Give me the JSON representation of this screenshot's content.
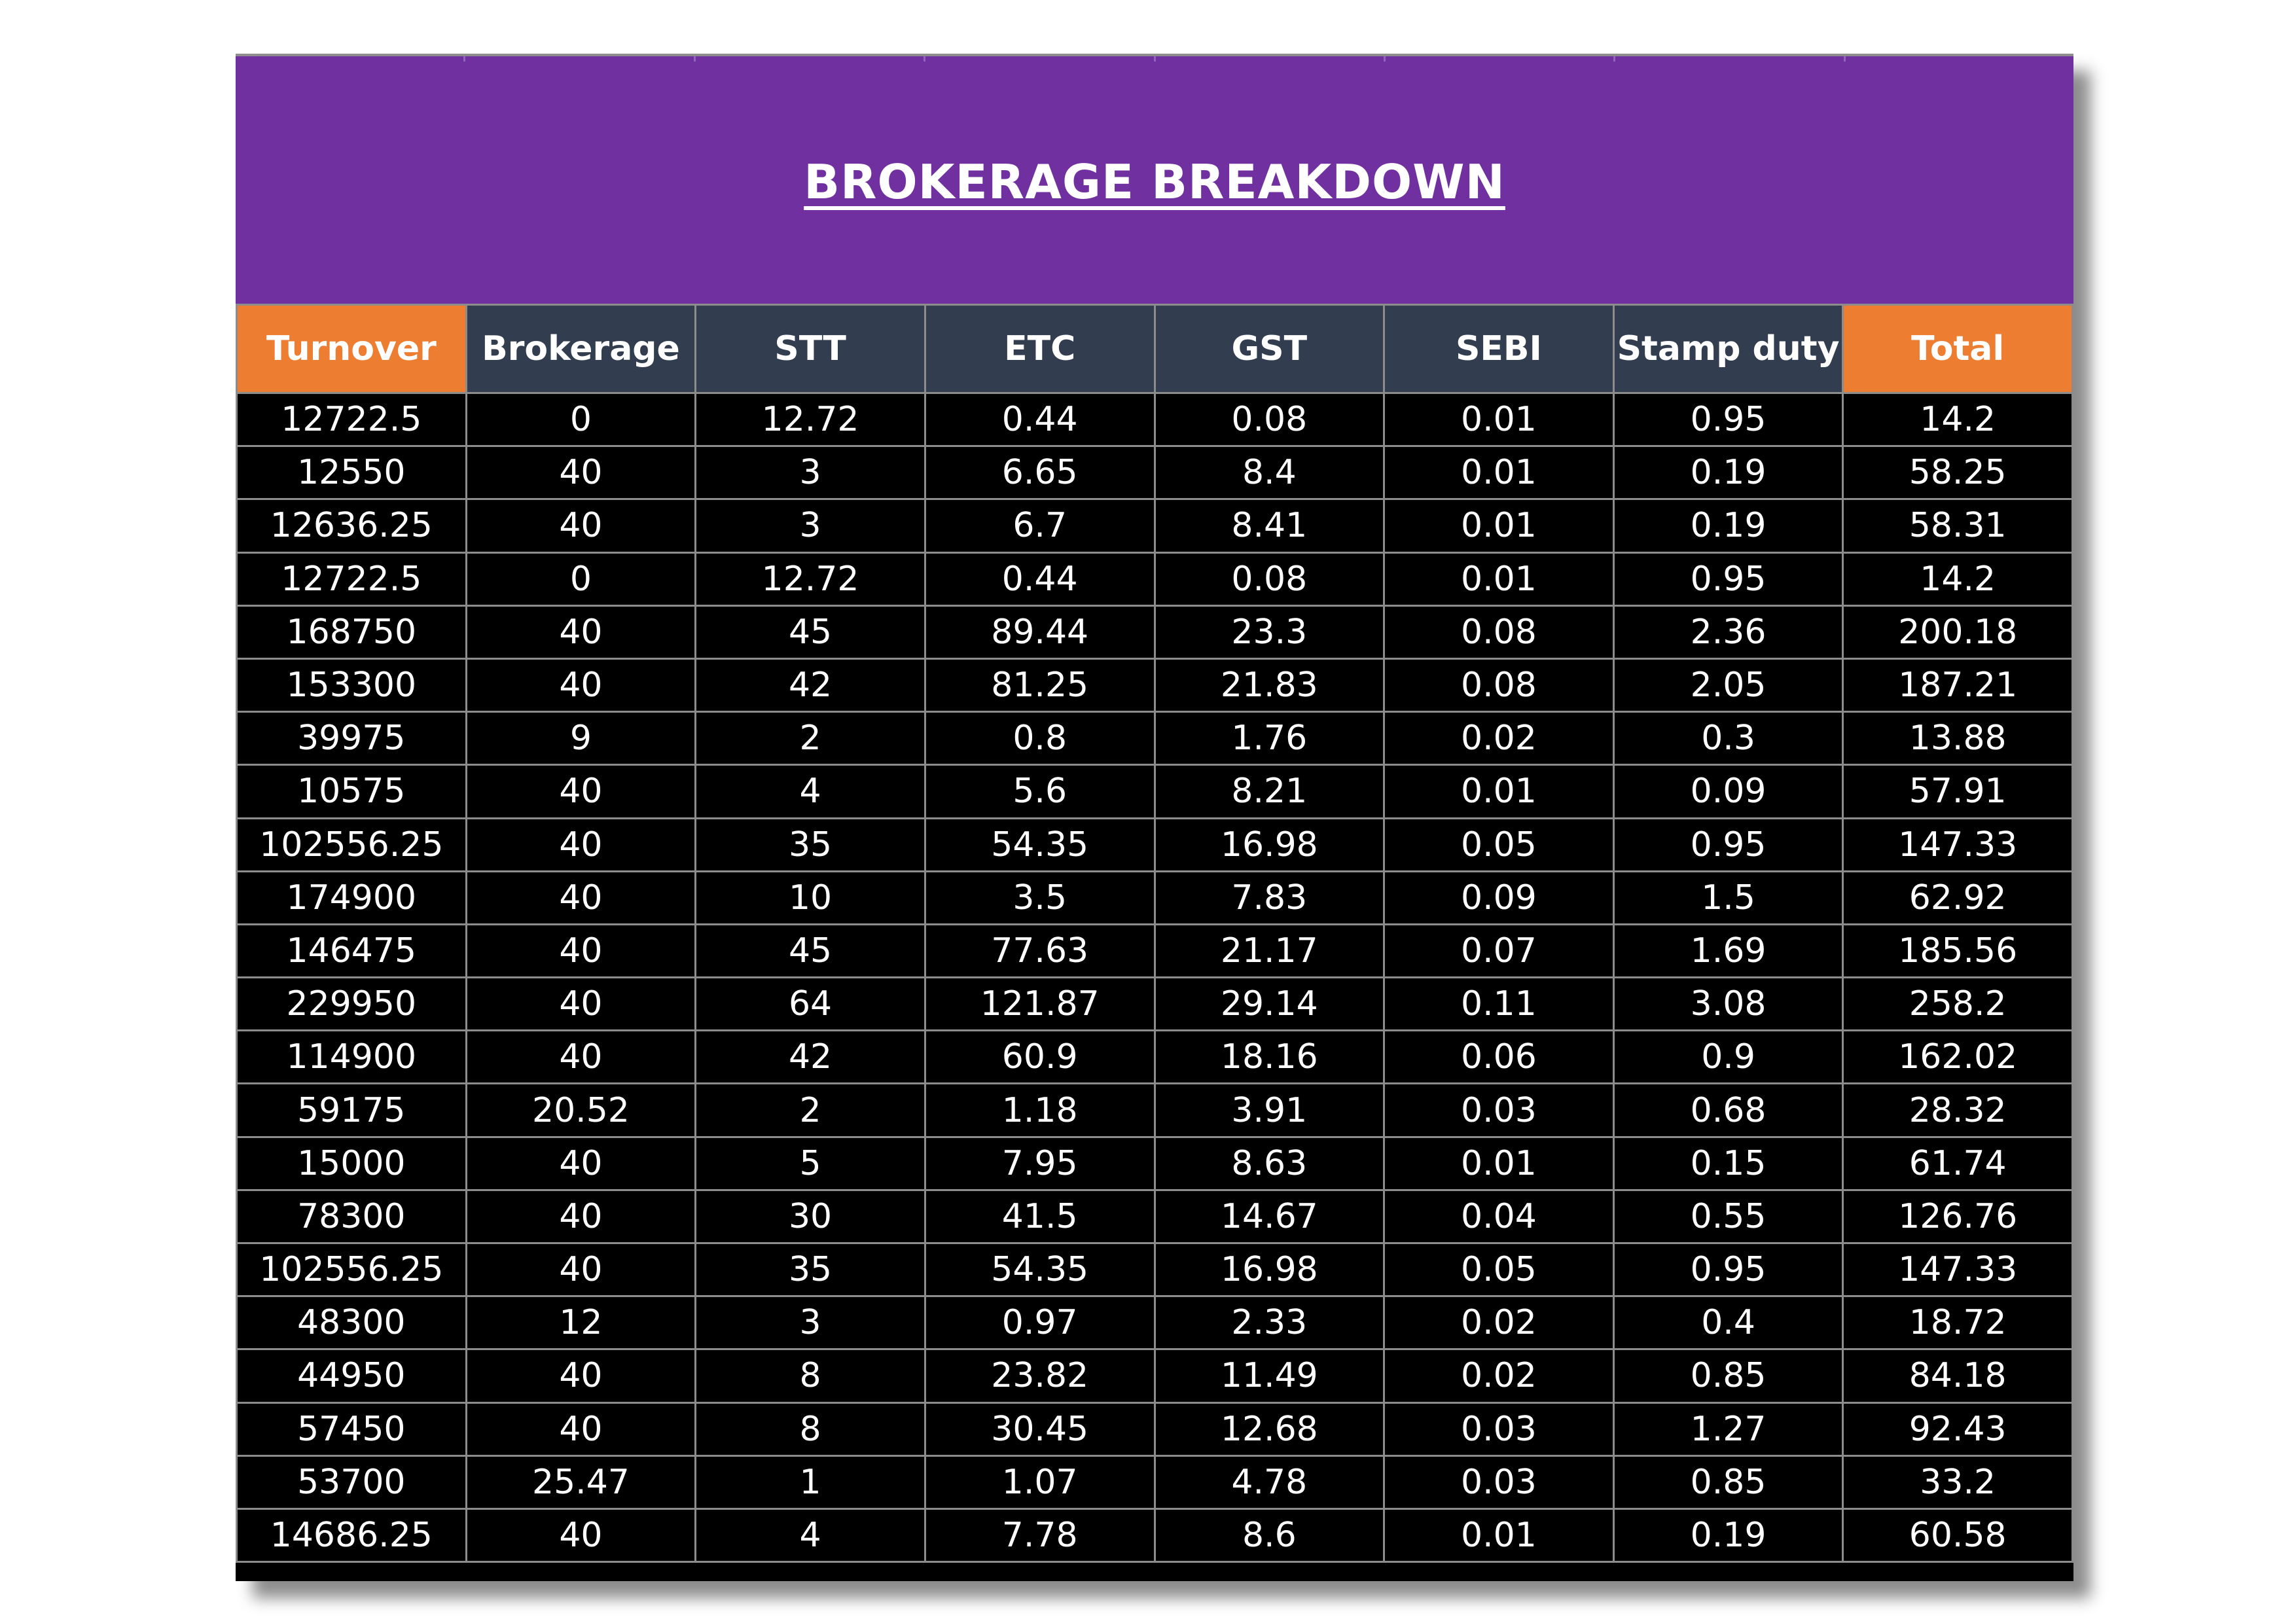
{
  "title": "BROKERAGE BREAKDOWN",
  "colors": {
    "title_band": "#7030a0",
    "header_orange": "#ed7d31",
    "header_slate": "#323e4f",
    "body_bg": "#000000",
    "text": "#ffffff"
  },
  "columns": [
    "Turnover",
    "Brokerage",
    "STT",
    "ETC",
    "GST",
    "SEBI",
    "Stamp duty",
    "Total"
  ],
  "rows": [
    [
      "12722.5",
      "0",
      "12.72",
      "0.44",
      "0.08",
      "0.01",
      "0.95",
      "14.2"
    ],
    [
      "12550",
      "40",
      "3",
      "6.65",
      "8.4",
      "0.01",
      "0.19",
      "58.25"
    ],
    [
      "12636.25",
      "40",
      "3",
      "6.7",
      "8.41",
      "0.01",
      "0.19",
      "58.31"
    ],
    [
      "12722.5",
      "0",
      "12.72",
      "0.44",
      "0.08",
      "0.01",
      "0.95",
      "14.2"
    ],
    [
      "168750",
      "40",
      "45",
      "89.44",
      "23.3",
      "0.08",
      "2.36",
      "200.18"
    ],
    [
      "153300",
      "40",
      "42",
      "81.25",
      "21.83",
      "0.08",
      "2.05",
      "187.21"
    ],
    [
      "39975",
      "9",
      "2",
      "0.8",
      "1.76",
      "0.02",
      "0.3",
      "13.88"
    ],
    [
      "10575",
      "40",
      "4",
      "5.6",
      "8.21",
      "0.01",
      "0.09",
      "57.91"
    ],
    [
      "102556.25",
      "40",
      "35",
      "54.35",
      "16.98",
      "0.05",
      "0.95",
      "147.33"
    ],
    [
      "174900",
      "40",
      "10",
      "3.5",
      "7.83",
      "0.09",
      "1.5",
      "62.92"
    ],
    [
      "146475",
      "40",
      "45",
      "77.63",
      "21.17",
      "0.07",
      "1.69",
      "185.56"
    ],
    [
      "229950",
      "40",
      "64",
      "121.87",
      "29.14",
      "0.11",
      "3.08",
      "258.2"
    ],
    [
      "114900",
      "40",
      "42",
      "60.9",
      "18.16",
      "0.06",
      "0.9",
      "162.02"
    ],
    [
      "59175",
      "20.52",
      "2",
      "1.18",
      "3.91",
      "0.03",
      "0.68",
      "28.32"
    ],
    [
      "15000",
      "40",
      "5",
      "7.95",
      "8.63",
      "0.01",
      "0.15",
      "61.74"
    ],
    [
      "78300",
      "40",
      "30",
      "41.5",
      "14.67",
      "0.04",
      "0.55",
      "126.76"
    ],
    [
      "102556.25",
      "40",
      "35",
      "54.35",
      "16.98",
      "0.05",
      "0.95",
      "147.33"
    ],
    [
      "48300",
      "12",
      "3",
      "0.97",
      "2.33",
      "0.02",
      "0.4",
      "18.72"
    ],
    [
      "44950",
      "40",
      "8",
      "23.82",
      "11.49",
      "0.02",
      "0.85",
      "84.18"
    ],
    [
      "57450",
      "40",
      "8",
      "30.45",
      "12.68",
      "0.03",
      "1.27",
      "92.43"
    ],
    [
      "53700",
      "25.47",
      "1",
      "1.07",
      "4.78",
      "0.03",
      "0.85",
      "33.2"
    ],
    [
      "14686.25",
      "40",
      "4",
      "7.78",
      "8.6",
      "0.01",
      "0.19",
      "60.58"
    ]
  ]
}
